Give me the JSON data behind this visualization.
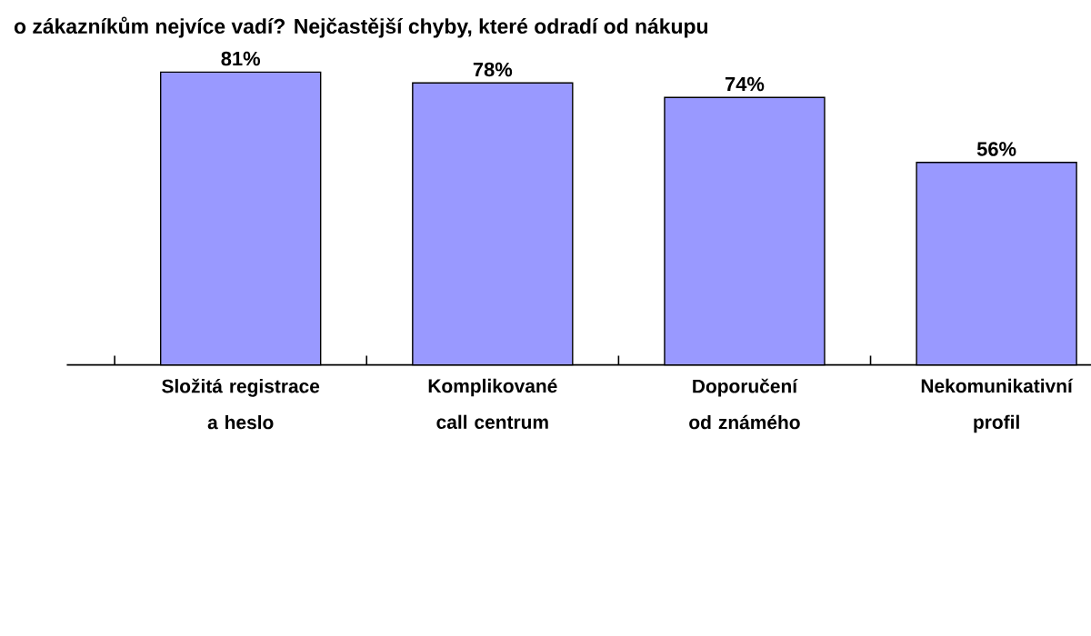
{
  "chart_data": {
    "type": "bar",
    "title": "o zákazníkům nejvíce vadí? Nejčastější chyby, které odradí od nákupu",
    "categories": [
      "Složitá registrace a heslo",
      "Komplikované call centrum",
      "Doporučení od známého",
      "Nekomunikativní profil"
    ],
    "values": [
      81,
      78,
      74,
      56
    ],
    "color": "#9999ff",
    "data_labels": true,
    "value_labels": [
      "81%",
      "78%",
      "74%",
      "56%"
    ]
  }
}
